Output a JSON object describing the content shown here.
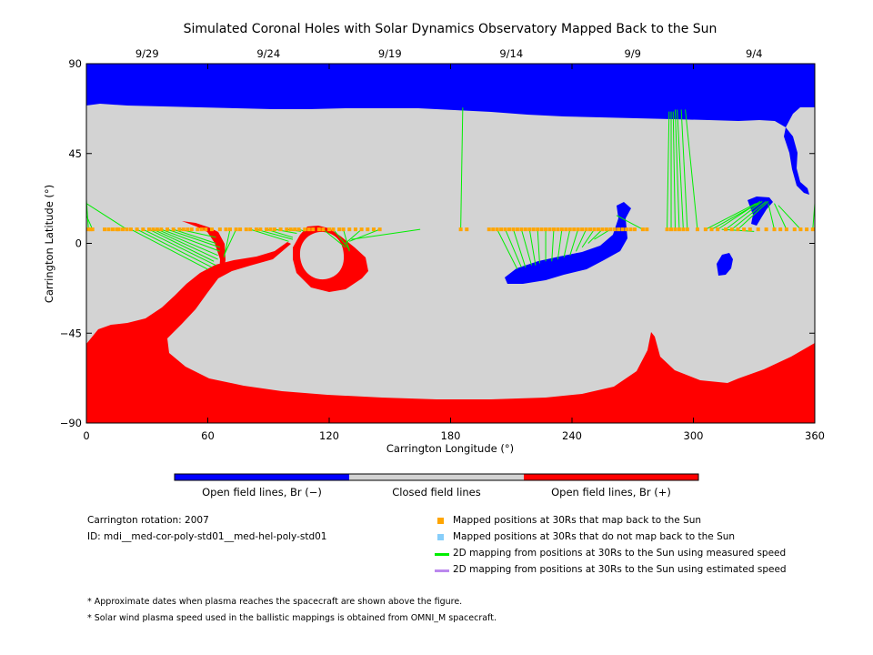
{
  "chart_data": {
    "type": "map",
    "title": "Simulated Coronal Holes with Solar Dynamics Observatory Mapped Back to the Sun",
    "xlabel": "Carrington Longitude (°)",
    "ylabel": "Carrington Latitude (°)",
    "xlim": [
      0,
      360
    ],
    "ylim": [
      -90,
      90
    ],
    "x_ticks": [
      "0",
      "60",
      "120",
      "180",
      "240",
      "300",
      "360"
    ],
    "y_ticks": [
      "90",
      "45",
      "0",
      "−45",
      "−90"
    ],
    "top_date_ticks": [
      {
        "label": "9/29",
        "lon": 30
      },
      {
        "label": "9/24",
        "lon": 90
      },
      {
        "label": "9/19",
        "lon": 150
      },
      {
        "label": "9/14",
        "lon": 210
      },
      {
        "label": "9/9",
        "lon": 270
      },
      {
        "label": "9/4",
        "lon": 330
      }
    ],
    "colors": {
      "open_negative": "#0000ff",
      "closed": "#d3d3d3",
      "open_positive": "#ff0000",
      "mapped_ok": "#ffa500",
      "mapped_not": "#87cefa",
      "measured_line": "#00ee00",
      "estimated_line": "#bb88ee"
    },
    "footpoint_latitude": 7,
    "footpoints_mapped": [
      1,
      2,
      3,
      9,
      11,
      13,
      15,
      16,
      18,
      20,
      22,
      25,
      28,
      31,
      33,
      35,
      37,
      40,
      43,
      46,
      48,
      50,
      52,
      55,
      57,
      59,
      62,
      66,
      69,
      71,
      74,
      76,
      79,
      81,
      84,
      86,
      89,
      91,
      93,
      96,
      99,
      101,
      103,
      105,
      108,
      110,
      112,
      115,
      117,
      120,
      122,
      125,
      127,
      130,
      133,
      136,
      139,
      142,
      145,
      185,
      188,
      199,
      201,
      203,
      205,
      207,
      209,
      211,
      213,
      215,
      217,
      219,
      221,
      223,
      225,
      227,
      229,
      231,
      233,
      235,
      237,
      239,
      241,
      243,
      245,
      247,
      249,
      251,
      253,
      255,
      257,
      259,
      261,
      263,
      265,
      267,
      269,
      271,
      275,
      277,
      287,
      289,
      291,
      293,
      295,
      297,
      302,
      306,
      309,
      312,
      316,
      319,
      322,
      325,
      328,
      332,
      336,
      340,
      343,
      346,
      350,
      353,
      356,
      359
    ],
    "mapping_lines_measured": [
      {
        "from_lon": 1,
        "to_lon": 0,
        "to_lat": 22
      },
      {
        "from_lon": 3,
        "to_lon": 0,
        "to_lat": 14
      },
      {
        "from_lon": 20,
        "to_lon": 0,
        "to_lat": 20
      },
      {
        "from_lon": 22,
        "to_lon": 60,
        "to_lat": -13
      },
      {
        "from_lon": 25,
        "to_lon": 62,
        "to_lat": -12
      },
      {
        "from_lon": 28,
        "to_lon": 64,
        "to_lat": -11
      },
      {
        "from_lon": 31,
        "to_lon": 63,
        "to_lat": -9
      },
      {
        "from_lon": 33,
        "to_lon": 65,
        "to_lat": -8
      },
      {
        "from_lon": 35,
        "to_lon": 65,
        "to_lat": -6
      },
      {
        "from_lon": 37,
        "to_lon": 66,
        "to_lat": -4
      },
      {
        "from_lon": 40,
        "to_lon": 66,
        "to_lat": -2
      },
      {
        "from_lon": 43,
        "to_lon": 64,
        "to_lat": 0
      },
      {
        "from_lon": 46,
        "to_lon": 64,
        "to_lat": 3
      },
      {
        "from_lon": 71,
        "to_lon": 68,
        "to_lat": -7
      },
      {
        "from_lon": 74,
        "to_lon": 68,
        "to_lat": -6
      },
      {
        "from_lon": 81,
        "to_lon": 100,
        "to_lat": 1
      },
      {
        "from_lon": 84,
        "to_lon": 102,
        "to_lat": 2
      },
      {
        "from_lon": 89,
        "to_lon": 102,
        "to_lat": 3
      },
      {
        "from_lon": 93,
        "to_lon": 104,
        "to_lat": 5
      },
      {
        "from_lon": 99,
        "to_lon": 106,
        "to_lat": 6
      },
      {
        "from_lon": 105,
        "to_lon": 108,
        "to_lat": 6
      },
      {
        "from_lon": 117,
        "to_lon": 128,
        "to_lat": -2
      },
      {
        "from_lon": 122,
        "to_lon": 130,
        "to_lat": -3
      },
      {
        "from_lon": 127,
        "to_lon": 130,
        "to_lat": -4
      },
      {
        "from_lon": 136,
        "to_lon": 128,
        "to_lat": 0
      },
      {
        "from_lon": 145,
        "to_lon": 130,
        "to_lat": 1
      },
      {
        "from_lon": 165,
        "to_lon": 131,
        "to_lat": 2
      },
      {
        "from_lon": 185,
        "to_lon": 186,
        "to_lat": 68
      },
      {
        "from_lon": 203,
        "to_lon": 213,
        "to_lat": -13
      },
      {
        "from_lon": 207,
        "to_lon": 215,
        "to_lat": -12
      },
      {
        "from_lon": 211,
        "to_lon": 217,
        "to_lat": -12
      },
      {
        "from_lon": 215,
        "to_lon": 220,
        "to_lat": -11
      },
      {
        "from_lon": 219,
        "to_lon": 222,
        "to_lat": -11
      },
      {
        "from_lon": 223,
        "to_lon": 224,
        "to_lat": -10
      },
      {
        "from_lon": 227,
        "to_lon": 227,
        "to_lat": -9
      },
      {
        "from_lon": 231,
        "to_lon": 230,
        "to_lat": -9
      },
      {
        "from_lon": 235,
        "to_lon": 233,
        "to_lat": -8
      },
      {
        "from_lon": 239,
        "to_lon": 236,
        "to_lat": -7
      },
      {
        "from_lon": 243,
        "to_lon": 239,
        "to_lat": -6
      },
      {
        "from_lon": 247,
        "to_lon": 242,
        "to_lat": -4
      },
      {
        "from_lon": 251,
        "to_lon": 245,
        "to_lat": -2
      },
      {
        "from_lon": 255,
        "to_lon": 248,
        "to_lat": 0
      },
      {
        "from_lon": 259,
        "to_lon": 251,
        "to_lat": 2
      },
      {
        "from_lon": 275,
        "to_lon": 262,
        "to_lat": 14
      },
      {
        "from_lon": 287,
        "to_lon": 288,
        "to_lat": 66
      },
      {
        "from_lon": 289,
        "to_lon": 289,
        "to_lat": 66
      },
      {
        "from_lon": 291,
        "to_lon": 290,
        "to_lat": 66
      },
      {
        "from_lon": 293,
        "to_lon": 291,
        "to_lat": 67
      },
      {
        "from_lon": 295,
        "to_lon": 292,
        "to_lat": 67
      },
      {
        "from_lon": 297,
        "to_lon": 294,
        "to_lat": 67
      },
      {
        "from_lon": 302,
        "to_lon": 296,
        "to_lat": 67
      },
      {
        "from_lon": 306,
        "to_lon": 331,
        "to_lat": 20
      },
      {
        "from_lon": 309,
        "to_lon": 332,
        "to_lat": 20
      },
      {
        "from_lon": 312,
        "to_lon": 333,
        "to_lat": 21
      },
      {
        "from_lon": 316,
        "to_lon": 334,
        "to_lat": 21
      },
      {
        "from_lon": 319,
        "to_lon": 336,
        "to_lat": 21
      },
      {
        "from_lon": 322,
        "to_lon": 337,
        "to_lat": 21
      },
      {
        "from_lon": 314,
        "to_lon": 330,
        "to_lat": 6
      },
      {
        "from_lon": 340,
        "to_lon": 337,
        "to_lat": 20
      },
      {
        "from_lon": 346,
        "to_lon": 340,
        "to_lat": 20
      },
      {
        "from_lon": 353,
        "to_lon": 342,
        "to_lat": 19
      },
      {
        "from_lon": 359,
        "to_lon": 360,
        "to_lat": 20
      }
    ],
    "colorbar": [
      {
        "label": "Open field lines, Br (−)",
        "color": "#0000ff"
      },
      {
        "label": "Closed field lines",
        "color": "#d3d3d3"
      },
      {
        "label": "Open field lines, Br (+)",
        "color": "#ff0000"
      }
    ],
    "legend": [
      {
        "label": "Mapped positions at 30Rs that map back to the Sun",
        "kind": "square",
        "color": "#ffa500"
      },
      {
        "label": "Mapped positions at 30Rs that do not map back to the Sun",
        "kind": "square",
        "color": "#87cefa"
      },
      {
        "label": "2D mapping from positions at 30Rs to the Sun using measured speed",
        "kind": "line",
        "color": "#00ee00"
      },
      {
        "label": "2D mapping from positions at 30Rs to the Sun using estimated speed",
        "kind": "line",
        "color": "#bb88ee"
      }
    ]
  },
  "info": {
    "rotation": "Carrington rotation: 2007",
    "id": "ID: mdi__med-cor-poly-std01__med-hel-poly-std01"
  },
  "notes": [
    "* Approximate dates when plasma reaches the spacecraft are shown above the figure.",
    "* Solar wind plasma speed used in the ballistic mappings is obtained from OMNI_M spacecraft."
  ]
}
